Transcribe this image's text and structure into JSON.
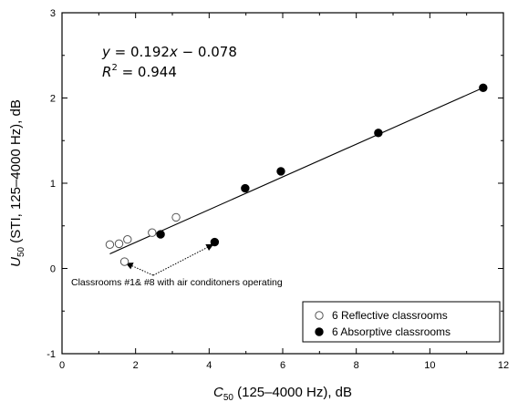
{
  "chart_data": {
    "type": "scatter",
    "xlabel": {
      "main": "C",
      "sub": "50",
      "rest": " (125–4000 Hz), dB"
    },
    "ylabel": {
      "main": "U",
      "sub": "50",
      "rest": " (STI, 125–4000 Hz), dB"
    },
    "xlim": [
      0,
      12
    ],
    "ylim": [
      -1,
      3
    ],
    "x_ticks": [
      "0",
      "2",
      "4",
      "6",
      "8",
      "10",
      "12"
    ],
    "y_ticks": [
      "-1",
      "0",
      "1",
      "2",
      "3"
    ],
    "grid": false,
    "legend_position": "bottom-right",
    "series": [
      {
        "name": "6 Reflective classrooms",
        "marker": "open-circle",
        "points": [
          [
            1.3,
            0.28
          ],
          [
            1.55,
            0.29
          ],
          [
            1.78,
            0.34
          ],
          [
            2.45,
            0.42
          ],
          [
            3.1,
            0.6
          ],
          [
            1.7,
            0.08
          ]
        ]
      },
      {
        "name": "6 Absorptive classrooms",
        "marker": "filled-circle",
        "points": [
          [
            2.68,
            0.4
          ],
          [
            4.15,
            0.31
          ],
          [
            4.98,
            0.94
          ],
          [
            5.95,
            1.14
          ],
          [
            8.6,
            1.59
          ],
          [
            11.45,
            2.12
          ]
        ]
      }
    ],
    "fit_line": {
      "slope": 0.192,
      "intercept": -0.078,
      "x_range": [
        1.3,
        11.45
      ]
    },
    "equation": {
      "y_label": "y",
      "rhs": " = 0.192",
      "x_label": "x",
      "tail": " − 0.078"
    },
    "r_squared": {
      "label": "R",
      "sup": "2",
      "rest": " = 0.944"
    },
    "annotation": {
      "text": "Classrooms #1& #8 with air conditoners operating",
      "targets": [
        [
          1.75,
          0.06
        ],
        [
          4.1,
          0.28
        ]
      ]
    }
  }
}
